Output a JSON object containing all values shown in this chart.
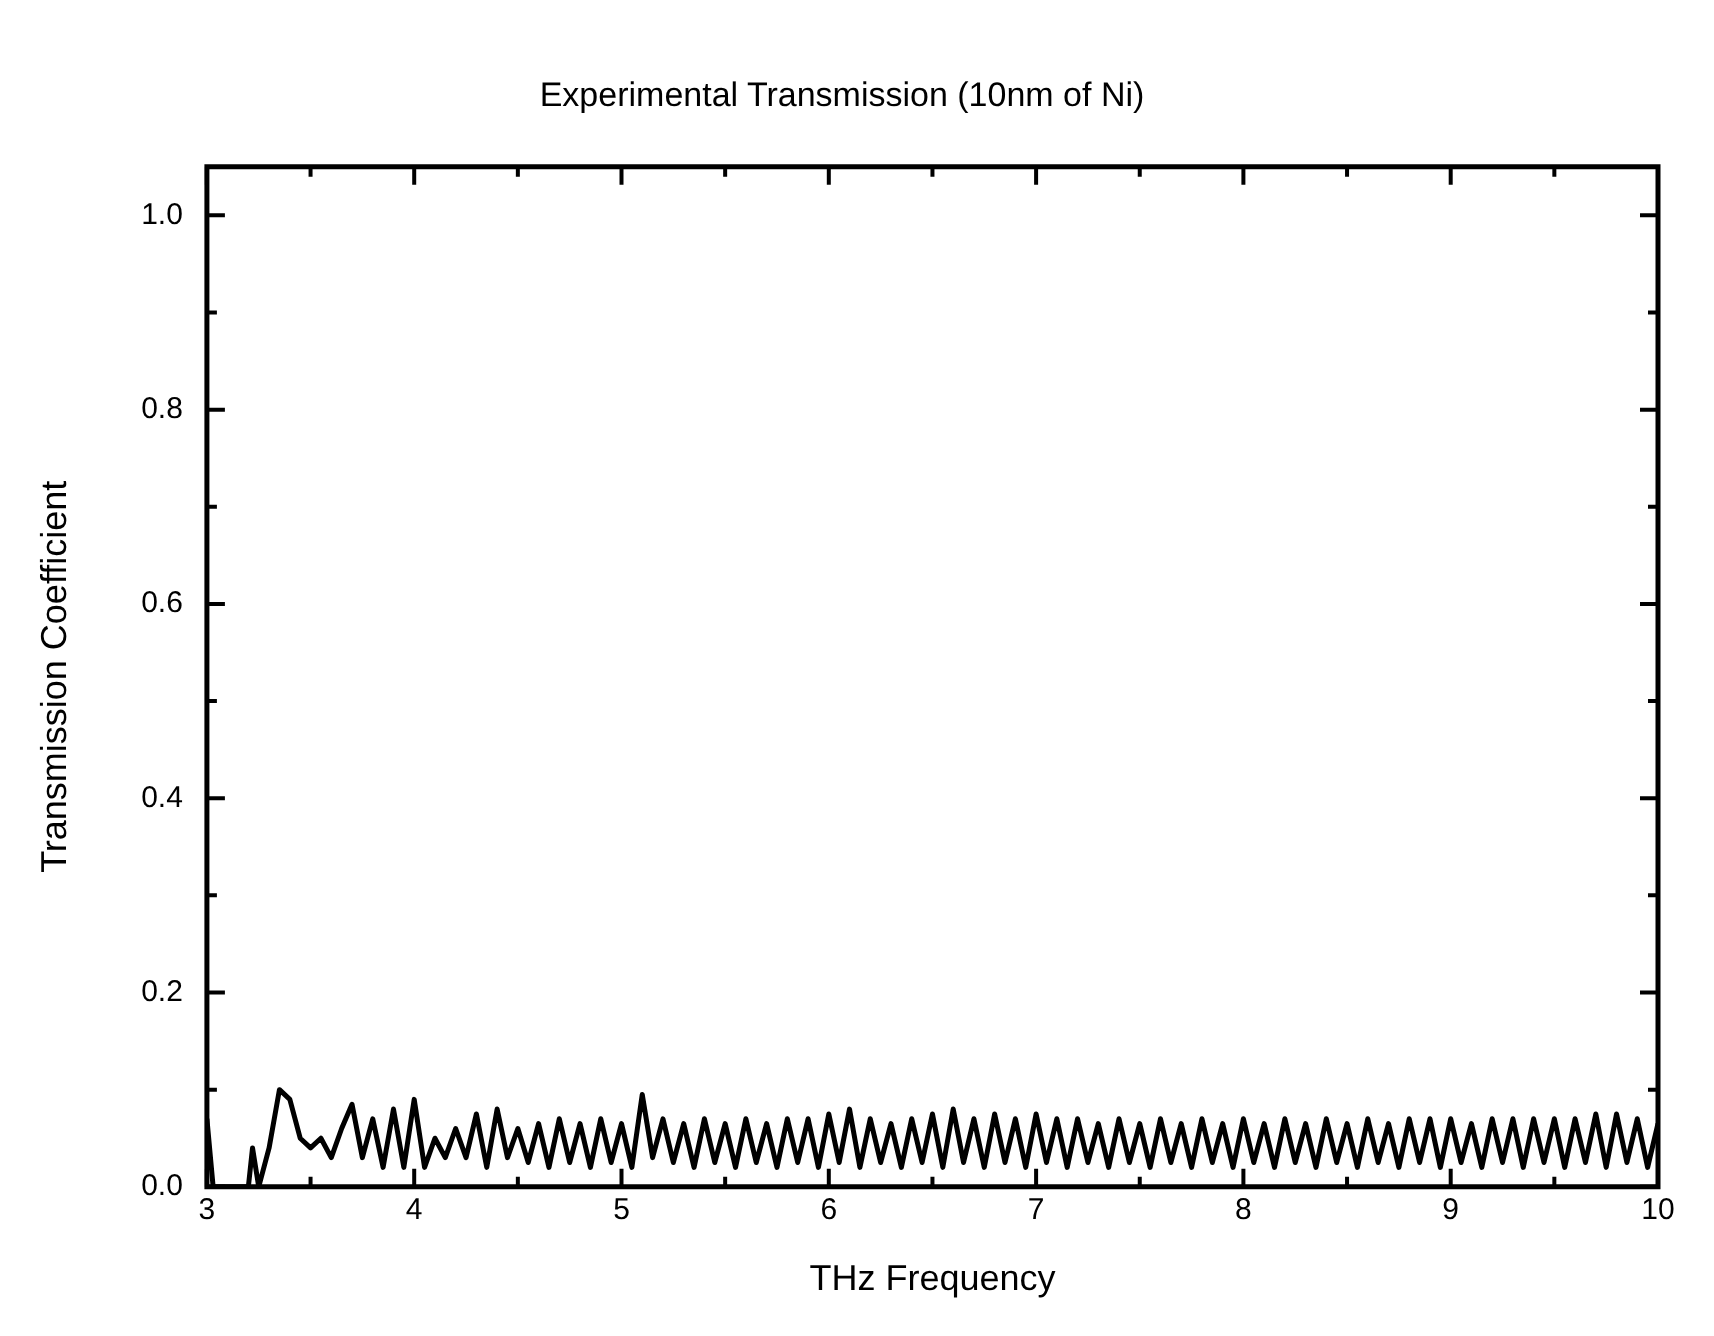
{
  "chart_data": {
    "type": "line",
    "title": "Experimental Transmission (10nm of Ni)",
    "xlabel": "THz Frequency",
    "ylabel": "Transmission Coefficient",
    "xlim": [
      3,
      10
    ],
    "xticks": [
      3,
      4,
      5,
      6,
      7,
      8,
      9,
      10
    ],
    "ylim": [
      0,
      1.05
    ],
    "yticks": [
      {
        "value": 0,
        "label": "0.0"
      },
      {
        "value": 0.2,
        "label": "0.2"
      },
      {
        "value": 0.4,
        "label": "0.4"
      },
      {
        "value": 0.6,
        "label": "0.6"
      },
      {
        "value": 0.8,
        "label": "0.8"
      },
      {
        "value": 1,
        "label": "1.0"
      }
    ],
    "grid": false,
    "legend": false,
    "marker": "none",
    "line_style": "solid",
    "series": [
      {
        "color": "#000000",
        "x": [
          3.0,
          3.03,
          3.2,
          3.22,
          3.25,
          3.3,
          3.35,
          3.4,
          3.45,
          3.5,
          3.55,
          3.6,
          3.65,
          3.7,
          3.75,
          3.8,
          3.85,
          3.9,
          3.95,
          4.0,
          4.05,
          4.1,
          4.15,
          4.2,
          4.25,
          4.3,
          4.35,
          4.4,
          4.45,
          4.5,
          4.55,
          4.6,
          4.65,
          4.7,
          4.75,
          4.8,
          4.85,
          4.9,
          4.95,
          5.0,
          5.05,
          5.1,
          5.15,
          5.2,
          5.25,
          5.3,
          5.35,
          5.4,
          5.45,
          5.5,
          5.55,
          5.6,
          5.65,
          5.7,
          5.75,
          5.8,
          5.85,
          5.9,
          5.95,
          6.0,
          6.05,
          6.1,
          6.15,
          6.2,
          6.25,
          6.3,
          6.35,
          6.4,
          6.45,
          6.5,
          6.55,
          6.6,
          6.65,
          6.7,
          6.75,
          6.8,
          6.85,
          6.9,
          6.95,
          7.0,
          7.05,
          7.1,
          7.15,
          7.2,
          7.25,
          7.3,
          7.35,
          7.4,
          7.45,
          7.5,
          7.55,
          7.6,
          7.65,
          7.7,
          7.75,
          7.8,
          7.85,
          7.9,
          7.95,
          8.0,
          8.05,
          8.1,
          8.15,
          8.2,
          8.25,
          8.3,
          8.35,
          8.4,
          8.45,
          8.5,
          8.55,
          8.6,
          8.65,
          8.7,
          8.75,
          8.8,
          8.85,
          8.9,
          8.95,
          9.0,
          9.05,
          9.1,
          9.15,
          9.2,
          9.25,
          9.3,
          9.35,
          9.4,
          9.45,
          9.5,
          9.55,
          9.6,
          9.65,
          9.7,
          9.75,
          9.8,
          9.85,
          9.9,
          9.95,
          10.0
        ],
        "values": [
          0.07,
          0.0,
          0.0,
          0.04,
          0.0,
          0.04,
          0.1,
          0.09,
          0.05,
          0.04,
          0.05,
          0.03,
          0.06,
          0.085,
          0.03,
          0.07,
          0.02,
          0.08,
          0.02,
          0.09,
          0.02,
          0.05,
          0.03,
          0.06,
          0.03,
          0.075,
          0.02,
          0.08,
          0.03,
          0.06,
          0.025,
          0.065,
          0.02,
          0.07,
          0.025,
          0.065,
          0.02,
          0.07,
          0.025,
          0.065,
          0.02,
          0.095,
          0.03,
          0.07,
          0.025,
          0.065,
          0.02,
          0.07,
          0.025,
          0.065,
          0.02,
          0.07,
          0.025,
          0.065,
          0.02,
          0.07,
          0.025,
          0.07,
          0.02,
          0.075,
          0.025,
          0.08,
          0.02,
          0.07,
          0.025,
          0.065,
          0.02,
          0.07,
          0.025,
          0.075,
          0.02,
          0.08,
          0.025,
          0.07,
          0.02,
          0.075,
          0.025,
          0.07,
          0.02,
          0.075,
          0.025,
          0.07,
          0.02,
          0.07,
          0.025,
          0.065,
          0.02,
          0.07,
          0.025,
          0.065,
          0.02,
          0.07,
          0.025,
          0.065,
          0.02,
          0.07,
          0.025,
          0.065,
          0.02,
          0.07,
          0.025,
          0.065,
          0.02,
          0.07,
          0.025,
          0.065,
          0.02,
          0.07,
          0.025,
          0.065,
          0.02,
          0.07,
          0.025,
          0.065,
          0.02,
          0.07,
          0.025,
          0.07,
          0.02,
          0.07,
          0.025,
          0.065,
          0.02,
          0.07,
          0.025,
          0.07,
          0.02,
          0.07,
          0.025,
          0.07,
          0.02,
          0.07,
          0.025,
          0.075,
          0.02,
          0.075,
          0.025,
          0.07,
          0.02,
          0.065
        ]
      }
    ]
  }
}
